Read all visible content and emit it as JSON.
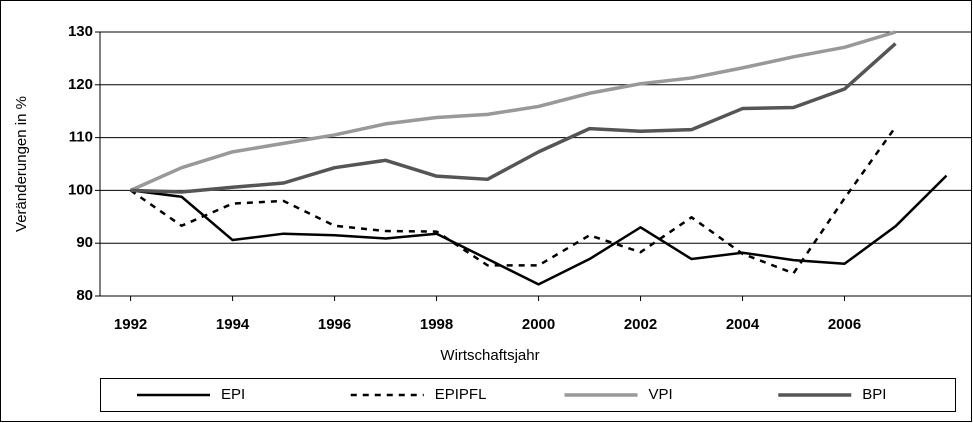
{
  "chart_data": {
    "type": "line",
    "y_label": "Veränderungen in %",
    "x_label": "Wirtschaftsjahr",
    "x": [
      1992,
      1993,
      1994,
      1995,
      1996,
      1997,
      1998,
      1999,
      2000,
      2001,
      2002,
      2003,
      2004,
      2005,
      2006,
      2007,
      2008
    ],
    "xlim": [
      1991.4,
      2008.5
    ],
    "xticks": [
      1992,
      1994,
      1996,
      1998,
      2000,
      2002,
      2004,
      2006
    ],
    "ylim": [
      80,
      130
    ],
    "yticks": [
      80,
      90,
      100,
      110,
      120,
      130
    ],
    "grid": true,
    "legend": "bottom",
    "series": [
      {
        "name": "EPI",
        "color": "#000000",
        "dashed": false,
        "values": [
          100,
          98.8,
          90.6,
          91.8,
          91.5,
          90.9,
          91.8,
          87,
          82.2,
          87,
          93,
          87,
          88.2,
          86.8,
          86.1,
          93.2,
          102.8
        ]
      },
      {
        "name": "EPIPFL",
        "color": "#000000",
        "dashed": true,
        "values": [
          100,
          93.3,
          97.5,
          98,
          93.3,
          92.3,
          92.2,
          85.8,
          85.8,
          91.5,
          88.3,
          94.9,
          88,
          84.3,
          98.5,
          112,
          null
        ]
      },
      {
        "name": "VPI",
        "color": "#999999",
        "dashed": false,
        "values": [
          100,
          104.3,
          107.3,
          108.9,
          110.5,
          112.6,
          113.8,
          114.4,
          115.9,
          118.4,
          120.2,
          121.3,
          123.2,
          125.3,
          127.1,
          130,
          null
        ]
      },
      {
        "name": "BPI",
        "color": "#555555",
        "dashed": false,
        "values": [
          100,
          99.7,
          100.6,
          101.4,
          104.3,
          105.7,
          102.7,
          102.1,
          107.3,
          111.7,
          111.2,
          111.5,
          115.5,
          115.7,
          119.2,
          127.8,
          null
        ]
      }
    ]
  }
}
